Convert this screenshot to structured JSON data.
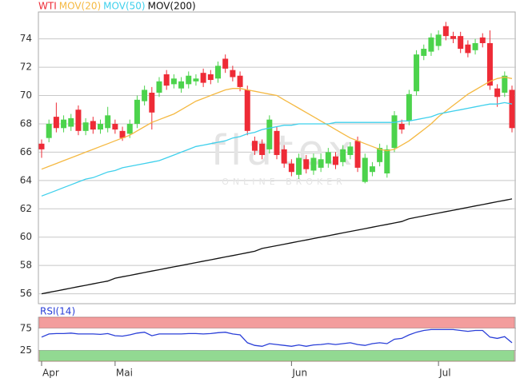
{
  "chart_data": [
    {
      "type": "candlestick",
      "watermark": "flatex",
      "watermark_sub": "ONLINE BROKER",
      "categories": [
        "Apr",
        null,
        null,
        null,
        null,
        null,
        null,
        null,
        null,
        null,
        "Mai",
        null,
        null,
        null,
        null,
        null,
        null,
        null,
        null,
        null,
        null,
        null,
        null,
        null,
        null,
        null,
        null,
        null,
        null,
        null,
        null,
        null,
        null,
        null,
        "Jun",
        null,
        null,
        null,
        null,
        null,
        null,
        null,
        null,
        null,
        null,
        null,
        null,
        null,
        null,
        null,
        null,
        null,
        null,
        null,
        "Jul",
        null,
        null,
        null,
        null,
        null,
        null,
        null,
        null,
        null,
        null
      ],
      "ylim": [
        55.3,
        75.9
      ],
      "yticks": [
        56,
        58,
        60,
        62,
        64,
        66,
        68,
        70,
        72,
        74
      ],
      "grid": true,
      "series": [
        {
          "name": "WTI",
          "color": "#ee2b36",
          "up_color": "#4cd34c",
          "open": [
            66.6,
            67.0,
            68.5,
            67.7,
            67.8,
            69.0,
            67.5,
            68.2,
            67.6,
            67.7,
            68.0,
            67.5,
            67.3,
            68.0,
            69.6,
            70.2,
            70.2,
            71.5,
            70.8,
            70.5,
            70.8,
            71.0,
            71.6,
            71.5,
            71.2,
            72.6,
            71.8,
            71.4,
            70.4,
            66.8,
            66.6,
            66.2,
            67.5,
            66.2,
            65.2,
            64.4,
            65.5,
            64.7,
            64.9,
            65.2,
            65.7,
            65.3,
            65.8,
            66.8,
            63.9,
            64.6,
            65.3,
            64.5,
            66.3,
            68.0,
            68.2,
            70.3,
            72.8,
            73.1,
            73.5,
            74.9,
            74.2,
            74.2,
            73.6,
            73.2,
            74.1,
            73.7,
            70.5,
            70.2,
            70.4
          ],
          "high": [
            66.9,
            68.3,
            69.5,
            68.6,
            68.7,
            69.3,
            68.4,
            68.5,
            68.3,
            69.2,
            68.3,
            67.8,
            68.3,
            70.0,
            70.7,
            70.6,
            71.3,
            71.8,
            71.5,
            71.3,
            71.7,
            71.5,
            71.9,
            71.8,
            72.4,
            72.9,
            72.1,
            71.7,
            70.7,
            67.1,
            66.9,
            68.6,
            67.8,
            66.5,
            65.5,
            65.9,
            65.8,
            65.9,
            65.9,
            66.3,
            66.0,
            66.5,
            66.7,
            67.1,
            65.9,
            65.3,
            66.6,
            66.5,
            68.9,
            68.3,
            70.4,
            73.2,
            73.6,
            74.4,
            74.6,
            75.2,
            74.5,
            74.5,
            73.9,
            74.0,
            74.4,
            74.6,
            70.8,
            71.7,
            70.7
          ],
          "low": [
            65.6,
            66.7,
            67.4,
            67.4,
            67.5,
            67.2,
            67.2,
            67.3,
            67.3,
            67.4,
            67.3,
            66.8,
            67.0,
            67.7,
            69.3,
            67.6,
            69.9,
            70.4,
            70.5,
            70.2,
            70.5,
            70.7,
            70.6,
            70.8,
            70.9,
            71.6,
            71.0,
            70.3,
            67.2,
            65.8,
            65.5,
            65.9,
            65.5,
            64.9,
            64.3,
            64.1,
            64.5,
            64.4,
            64.6,
            64.9,
            64.8,
            65.0,
            65.5,
            64.6,
            63.8,
            64.3,
            65.0,
            64.2,
            66.0,
            67.3,
            67.9,
            70.0,
            72.5,
            72.8,
            73.2,
            73.9,
            73.7,
            73.0,
            72.7,
            72.9,
            73.4,
            70.4,
            69.2,
            69.9,
            67.4
          ],
          "close": [
            66.2,
            68.0,
            67.7,
            68.3,
            68.4,
            67.5,
            68.1,
            67.6,
            68.0,
            68.6,
            67.6,
            67.0,
            68.0,
            69.7,
            70.4,
            68.8,
            71.0,
            70.7,
            71.2,
            71.0,
            71.4,
            71.2,
            70.9,
            71.1,
            72.1,
            71.9,
            71.3,
            70.6,
            67.5,
            66.1,
            65.8,
            68.3,
            65.8,
            65.2,
            64.6,
            65.6,
            64.8,
            65.6,
            65.5,
            66.0,
            65.1,
            66.2,
            66.4,
            64.9,
            65.6,
            65.0,
            66.3,
            66.2,
            68.6,
            67.6,
            70.1,
            72.9,
            73.3,
            74.1,
            74.3,
            74.2,
            74.0,
            73.3,
            73.0,
            73.7,
            73.7,
            70.7,
            69.9,
            71.4,
            67.7
          ]
        },
        {
          "name": "MOV(20)",
          "color": "#f5b942",
          "values": [
            64.8,
            65.0,
            65.2,
            65.4,
            65.6,
            65.8,
            66.0,
            66.2,
            66.4,
            66.6,
            66.8,
            67.0,
            67.2,
            67.5,
            67.8,
            68.1,
            68.3,
            68.5,
            68.7,
            69.0,
            69.3,
            69.6,
            69.8,
            70.0,
            70.2,
            70.4,
            70.5,
            70.5,
            70.4,
            70.3,
            70.2,
            70.1,
            70.0,
            69.7,
            69.4,
            69.1,
            68.8,
            68.5,
            68.2,
            67.9,
            67.6,
            67.3,
            67.0,
            66.8,
            66.6,
            66.4,
            66.2,
            66.1,
            66.2,
            66.5,
            66.8,
            67.2,
            67.6,
            68.0,
            68.5,
            68.9,
            69.3,
            69.7,
            70.1,
            70.4,
            70.7,
            71.0,
            71.2,
            71.3,
            71.2
          ]
        },
        {
          "name": "MOV(50)",
          "color": "#3fd0ec",
          "values": [
            62.9,
            63.1,
            63.3,
            63.5,
            63.7,
            63.9,
            64.1,
            64.2,
            64.4,
            64.6,
            64.7,
            64.9,
            65.0,
            65.1,
            65.2,
            65.3,
            65.4,
            65.6,
            65.8,
            66.0,
            66.2,
            66.4,
            66.5,
            66.6,
            66.7,
            66.8,
            67.0,
            67.1,
            67.3,
            67.4,
            67.6,
            67.7,
            67.8,
            67.9,
            67.9,
            68.0,
            68.0,
            68.0,
            68.0,
            68.0,
            68.1,
            68.1,
            68.1,
            68.1,
            68.1,
            68.1,
            68.1,
            68.1,
            68.1,
            68.2,
            68.2,
            68.3,
            68.4,
            68.5,
            68.7,
            68.8,
            68.9,
            69.0,
            69.1,
            69.2,
            69.3,
            69.4,
            69.4,
            69.5,
            69.4
          ]
        },
        {
          "name": "MOV(200)",
          "color": "#111111",
          "values": [
            56.0,
            56.1,
            56.2,
            56.3,
            56.4,
            56.5,
            56.6,
            56.7,
            56.8,
            56.9,
            57.1,
            57.2,
            57.3,
            57.4,
            57.5,
            57.6,
            57.7,
            57.8,
            57.9,
            58.0,
            58.1,
            58.2,
            58.3,
            58.4,
            58.5,
            58.6,
            58.7,
            58.8,
            58.9,
            59.0,
            59.2,
            59.3,
            59.4,
            59.5,
            59.6,
            59.7,
            59.8,
            59.9,
            60.0,
            60.1,
            60.2,
            60.3,
            60.4,
            60.5,
            60.6,
            60.7,
            60.8,
            60.9,
            61.0,
            61.1,
            61.3,
            61.4,
            61.5,
            61.6,
            61.7,
            61.8,
            61.9,
            62.0,
            62.1,
            62.2,
            62.3,
            62.4,
            62.5,
            62.6,
            62.7
          ]
        }
      ]
    },
    {
      "type": "line",
      "title": "RSI(14)",
      "ylim": [
        0,
        100
      ],
      "yticks": [
        25,
        75
      ],
      "bands": [
        {
          "from": 75,
          "to": 100,
          "color": "#f28c8c"
        },
        {
          "from": 0,
          "to": 25,
          "color": "#7fd37f"
        }
      ],
      "series": [
        {
          "name": "RSI(14)",
          "color": "#2a3fd8",
          "values": [
            55,
            62,
            63,
            63,
            64,
            62,
            62,
            62,
            61,
            63,
            58,
            57,
            60,
            64,
            66,
            58,
            62,
            62,
            62,
            62,
            63,
            63,
            62,
            63,
            65,
            66,
            62,
            60,
            42,
            36,
            34,
            40,
            38,
            36,
            34,
            37,
            34,
            37,
            38,
            40,
            38,
            40,
            42,
            38,
            36,
            40,
            42,
            40,
            50,
            52,
            60,
            66,
            70,
            72,
            72,
            72,
            72,
            70,
            68,
            70,
            70,
            55,
            52,
            56,
            42
          ]
        }
      ]
    }
  ]
}
